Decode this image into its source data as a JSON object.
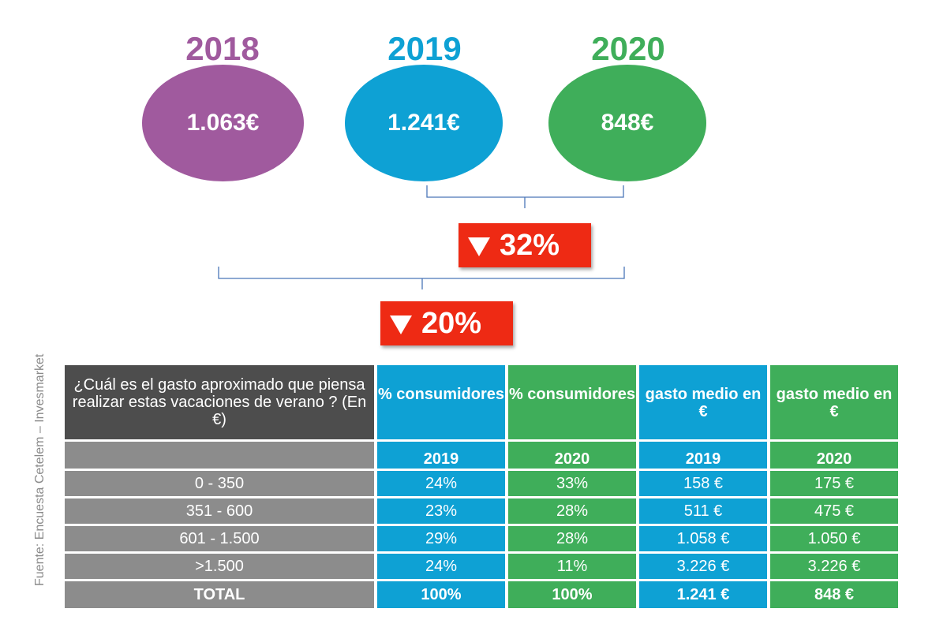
{
  "colors": {
    "c2018": "#a05a9e",
    "c2019": "#0ea1d4",
    "c2020": "#3fae5a",
    "badge": "#ee2a14"
  },
  "years": [
    {
      "year": "2018",
      "value": "1.063€"
    },
    {
      "year": "2019",
      "value": "1.241€"
    },
    {
      "year": "2020",
      "value": "848€"
    }
  ],
  "badges": {
    "b2019_2020": "32%",
    "b2018_2020": "20%"
  },
  "source": "Fuente: Encuesta Cetelem – Invesmarket",
  "chart_data": {
    "type": "table",
    "question": "¿Cuál es el gasto aproximado que piensa realizar estas vacaciones de verano ?  (En €)",
    "columns": [
      {
        "label": "% consumidores",
        "year": "2019"
      },
      {
        "label": "% consumidores",
        "year": "2020"
      },
      {
        "label": "gasto medio en €",
        "year": "2019"
      },
      {
        "label": "gasto medio en €",
        "year": "2020"
      }
    ],
    "rows": [
      {
        "label": "0 - 350",
        "values": [
          "24%",
          "33%",
          "158 €",
          "175 €"
        ]
      },
      {
        "label": "351 - 600",
        "values": [
          "23%",
          "28%",
          "511 €",
          "475 €"
        ]
      },
      {
        "label": "601 - 1.500",
        "values": [
          "29%",
          "28%",
          "1.058 €",
          "1.050 €"
        ]
      },
      {
        "label": ">1.500",
        "values": [
          "24%",
          "11%",
          "3.226 €",
          "3.226 €"
        ]
      }
    ],
    "total": {
      "label": "TOTAL",
      "values": [
        "100%",
        "100%",
        "1.241 €",
        "848 €"
      ]
    }
  }
}
